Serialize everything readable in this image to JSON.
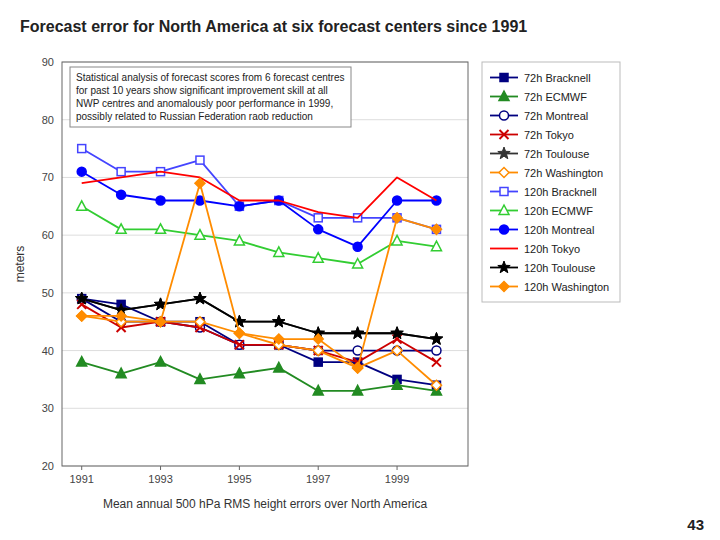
{
  "chart_data": {
    "type": "line",
    "title": "Forecast error for North America at six forecast centers since 1991",
    "subtitle": "Statistical analysis of forecast scores from 6 forecast centres\nfor past 10 years show significant improvement skill at all\nNWP centres and anomalously poor performance in 1999,\npossibly related to Russian Federation raob reduction",
    "xlabel": "Mean annual 500 hPa RMS height errors over North America",
    "ylabel": "meters",
    "annotations": [
      "43"
    ],
    "x": [
      1991,
      1992,
      1993,
      1994,
      1995,
      1996,
      1997,
      1998,
      1999,
      2000
    ],
    "xlim": [
      1990.5,
      2000.8
    ],
    "xticks": [
      1991,
      1993,
      1995,
      1997,
      1999
    ],
    "ylim": [
      20,
      90
    ],
    "yticks": [
      20,
      30,
      40,
      50,
      60,
      70,
      80,
      90
    ],
    "grid": true,
    "legend": "right",
    "series": [
      {
        "name": "72h Bracknell",
        "color": "#000080",
        "marker": "square",
        "values": [
          49,
          48,
          45,
          45,
          41,
          41,
          38,
          38,
          35,
          34
        ]
      },
      {
        "name": "72h ECMWF",
        "color": "#228B22",
        "marker": "triangle",
        "values": [
          38,
          36,
          38,
          35,
          36,
          37,
          33,
          33,
          34,
          33
        ]
      },
      {
        "name": "72h Montreal",
        "color": "#000080",
        "marker": "circle-open",
        "values": [
          49,
          45,
          45,
          44,
          41,
          41,
          40,
          40,
          40,
          40
        ]
      },
      {
        "name": "72h Tokyo",
        "color": "#CC0000",
        "marker": "x",
        "values": [
          48,
          44,
          45,
          44,
          41,
          41,
          40,
          38,
          42,
          38
        ]
      },
      {
        "name": "72h Toulouse",
        "color": "#333333",
        "marker": "star",
        "values": [
          49,
          47,
          48,
          49,
          45,
          45,
          43,
          43,
          43,
          42
        ]
      },
      {
        "name": "72h Washington",
        "color": "#FF8C00",
        "marker": "diamond-open",
        "values": [
          46,
          45,
          45,
          45,
          43,
          41,
          40,
          37,
          40,
          34
        ]
      },
      {
        "name": "120h Bracknell",
        "color": "#4444FF",
        "marker": "square-open",
        "values": [
          75,
          71,
          71,
          73,
          65,
          66,
          63,
          63,
          63,
          61
        ]
      },
      {
        "name": "120h ECMWF",
        "color": "#32CD32",
        "marker": "triangle-open",
        "values": [
          65,
          61,
          61,
          60,
          59,
          57,
          56,
          55,
          59,
          58
        ]
      },
      {
        "name": "120h Montreal",
        "color": "#0000FF",
        "marker": "circle",
        "values": [
          71,
          67,
          66,
          66,
          65,
          66,
          61,
          58,
          66,
          66
        ]
      },
      {
        "name": "120h Tokyo",
        "color": "#FF0000",
        "marker": "none",
        "values": [
          69,
          70,
          71,
          70,
          66,
          66,
          64,
          63,
          70,
          66
        ]
      },
      {
        "name": "120h Toulouse",
        "color": "#000000",
        "marker": "star",
        "values": [
          49,
          47,
          48,
          49,
          45,
          45,
          43,
          43,
          43,
          42
        ]
      },
      {
        "name": "120h Washington",
        "color": "#FF8C00",
        "marker": "diamond",
        "values": [
          46,
          46,
          45,
          69,
          43,
          42,
          42,
          37,
          63,
          61
        ]
      }
    ]
  }
}
